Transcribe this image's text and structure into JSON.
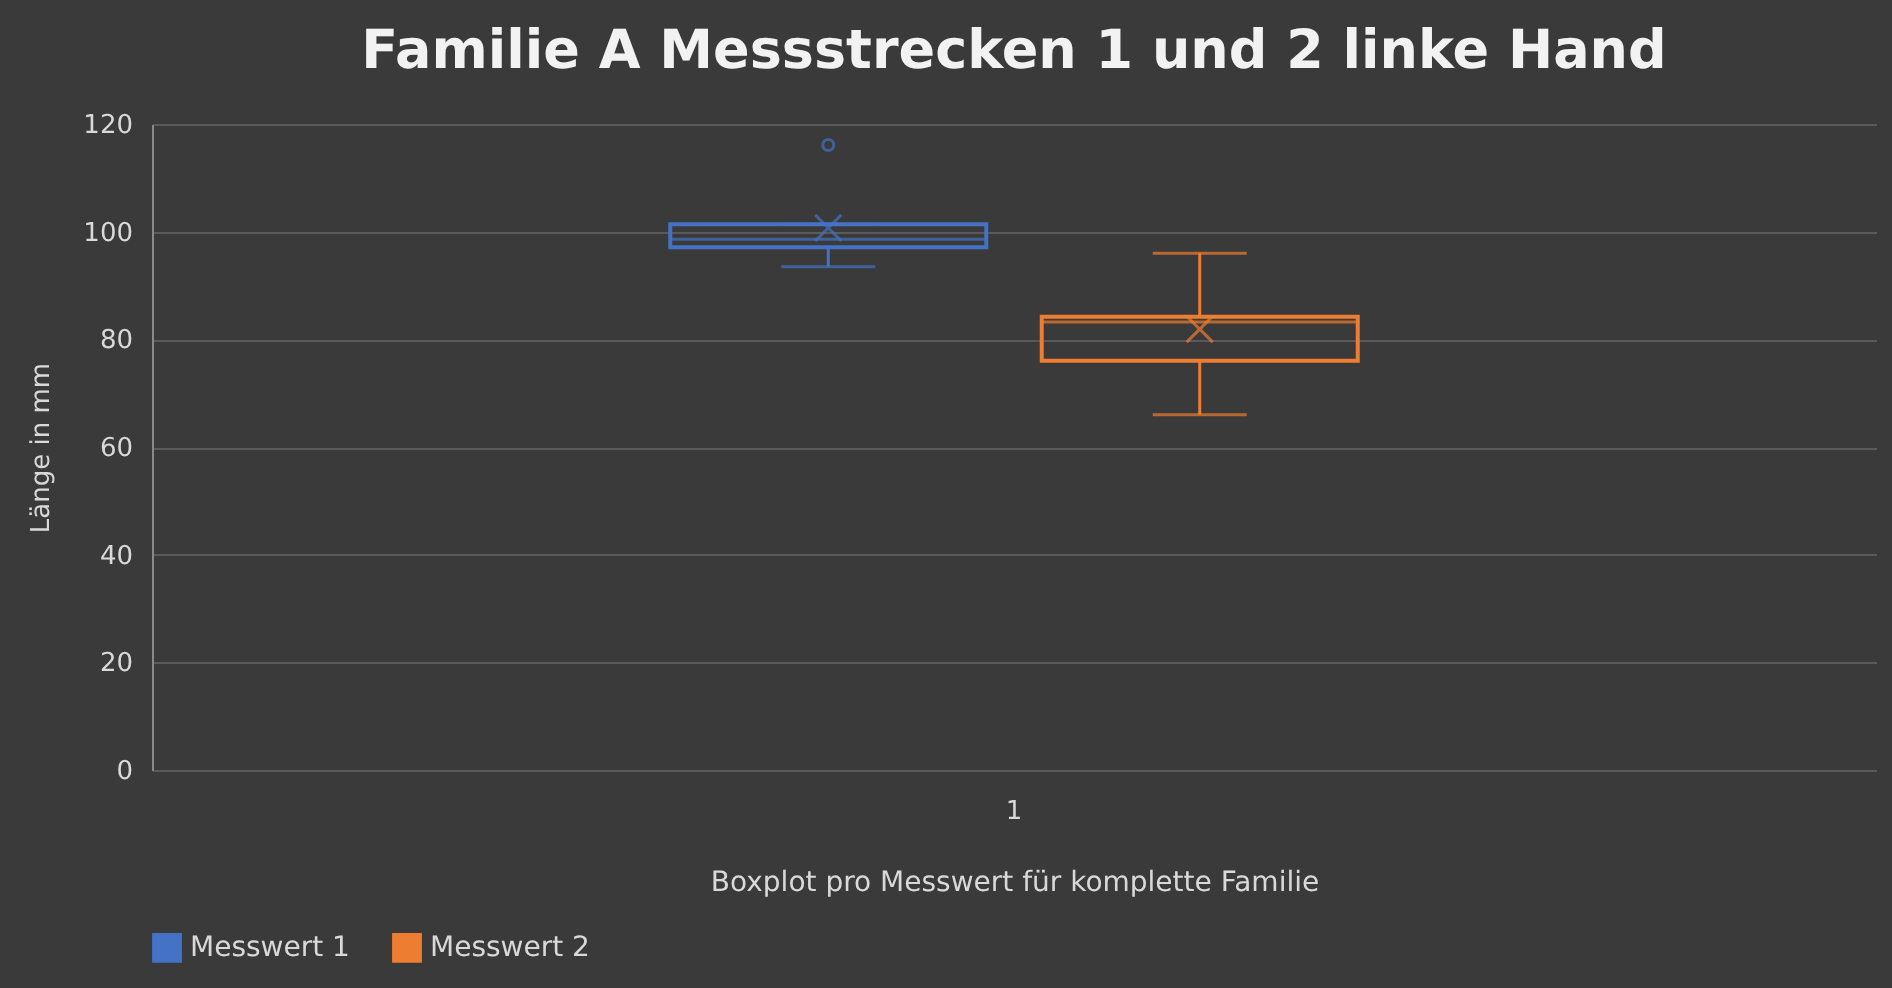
{
  "chart_data": {
    "type": "box",
    "title": "Familie A Messstrecken 1 und 2 linke Hand",
    "xlabel": "Boxplot pro Messwert für komplette Familie",
    "ylabel": "Länge in mm",
    "categories": [
      "1"
    ],
    "series": [
      {
        "name": "Messwert 1",
        "color": "#4472c4",
        "boxes": [
          {
            "low": 93.5,
            "q1": 97.1,
            "median": 98.6,
            "q3": 101.4,
            "high": 101.4,
            "mean": 100.7,
            "outliers": [
              116.1
            ]
          }
        ]
      },
      {
        "name": "Messwert 2",
        "color": "#ed7d31",
        "boxes": [
          {
            "low": 66,
            "q1": 76,
            "median": 83.2,
            "q3": 84.2,
            "high": 96,
            "mean": 81.9
          }
        ]
      }
    ],
    "ylim": [
      0,
      120
    ],
    "yticks": [
      0,
      20,
      40,
      60,
      80,
      100,
      120
    ],
    "grid": "y",
    "legend": "bottom"
  }
}
